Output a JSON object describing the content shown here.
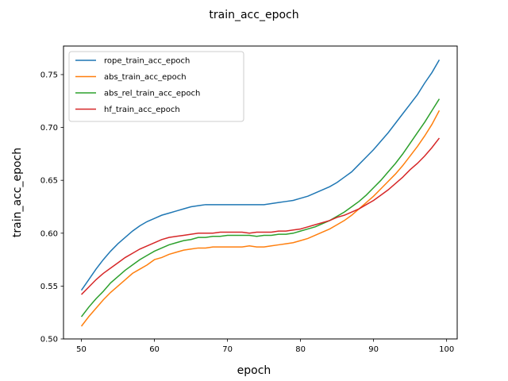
{
  "chart_data": {
    "type": "line",
    "title": "train_acc_epoch",
    "xlabel": "epoch",
    "ylabel": "train_acc_epoch",
    "xlim": [
      47.55,
      101.45
    ],
    "ylim": [
      0.5,
      0.777
    ],
    "xticks": [
      50,
      60,
      70,
      80,
      90,
      100
    ],
    "xtick_labels": [
      "50",
      "60",
      "70",
      "80",
      "90",
      "100"
    ],
    "yticks": [
      0.5,
      0.55,
      0.6,
      0.65,
      0.7,
      0.75
    ],
    "ytick_labels": [
      "0.50",
      "0.55",
      "0.60",
      "0.65",
      "0.70",
      "0.75"
    ],
    "grid": false,
    "legend_position": "upper-left",
    "x": [
      50,
      51,
      52,
      53,
      54,
      55,
      56,
      57,
      58,
      59,
      60,
      61,
      62,
      63,
      64,
      65,
      66,
      67,
      68,
      69,
      70,
      71,
      72,
      73,
      74,
      75,
      76,
      77,
      78,
      79,
      80,
      81,
      82,
      83,
      84,
      85,
      86,
      87,
      88,
      89,
      90,
      91,
      92,
      93,
      94,
      95,
      96,
      97,
      98,
      99
    ],
    "series": [
      {
        "name": "rope_train_acc_epoch",
        "color": "#1f77b4",
        "values": [
          0.546,
          0.556,
          0.566,
          0.575,
          0.583,
          0.59,
          0.596,
          0.602,
          0.607,
          0.611,
          0.614,
          0.617,
          0.619,
          0.621,
          0.623,
          0.625,
          0.626,
          0.627,
          0.627,
          0.627,
          0.627,
          0.627,
          0.627,
          0.627,
          0.627,
          0.627,
          0.628,
          0.629,
          0.63,
          0.631,
          0.633,
          0.635,
          0.638,
          0.641,
          0.644,
          0.648,
          0.653,
          0.658,
          0.665,
          0.672,
          0.679,
          0.687,
          0.695,
          0.704,
          0.713,
          0.722,
          0.731,
          0.742,
          0.752,
          0.764
        ]
      },
      {
        "name": "abs_train_acc_epoch",
        "color": "#ff7f0e",
        "values": [
          0.512,
          0.521,
          0.529,
          0.537,
          0.544,
          0.55,
          0.556,
          0.562,
          0.566,
          0.57,
          0.575,
          0.577,
          0.58,
          0.582,
          0.584,
          0.585,
          0.586,
          0.586,
          0.587,
          0.587,
          0.587,
          0.587,
          0.587,
          0.588,
          0.587,
          0.587,
          0.588,
          0.589,
          0.59,
          0.591,
          0.593,
          0.595,
          0.598,
          0.601,
          0.604,
          0.608,
          0.612,
          0.617,
          0.623,
          0.629,
          0.635,
          0.642,
          0.649,
          0.656,
          0.664,
          0.673,
          0.682,
          0.692,
          0.703,
          0.716
        ]
      },
      {
        "name": "abs_rel_train_acc_epoch",
        "color": "#2ca02c",
        "values": [
          0.521,
          0.53,
          0.538,
          0.545,
          0.553,
          0.559,
          0.565,
          0.57,
          0.575,
          0.579,
          0.583,
          0.586,
          0.589,
          0.591,
          0.593,
          0.594,
          0.596,
          0.596,
          0.597,
          0.597,
          0.598,
          0.598,
          0.598,
          0.598,
          0.597,
          0.598,
          0.598,
          0.599,
          0.599,
          0.6,
          0.602,
          0.604,
          0.606,
          0.609,
          0.612,
          0.616,
          0.62,
          0.625,
          0.63,
          0.636,
          0.643,
          0.65,
          0.658,
          0.666,
          0.675,
          0.685,
          0.695,
          0.705,
          0.716,
          0.727
        ]
      },
      {
        "name": "hf_train_acc_epoch",
        "color": "#d62728",
        "values": [
          0.542,
          0.549,
          0.556,
          0.562,
          0.567,
          0.572,
          0.577,
          0.581,
          0.585,
          0.588,
          0.591,
          0.594,
          0.596,
          0.597,
          0.598,
          0.599,
          0.6,
          0.6,
          0.6,
          0.601,
          0.601,
          0.601,
          0.601,
          0.6,
          0.601,
          0.601,
          0.601,
          0.602,
          0.602,
          0.603,
          0.604,
          0.606,
          0.608,
          0.61,
          0.612,
          0.615,
          0.617,
          0.62,
          0.623,
          0.627,
          0.631,
          0.636,
          0.641,
          0.647,
          0.653,
          0.66,
          0.666,
          0.673,
          0.681,
          0.69
        ]
      }
    ]
  }
}
